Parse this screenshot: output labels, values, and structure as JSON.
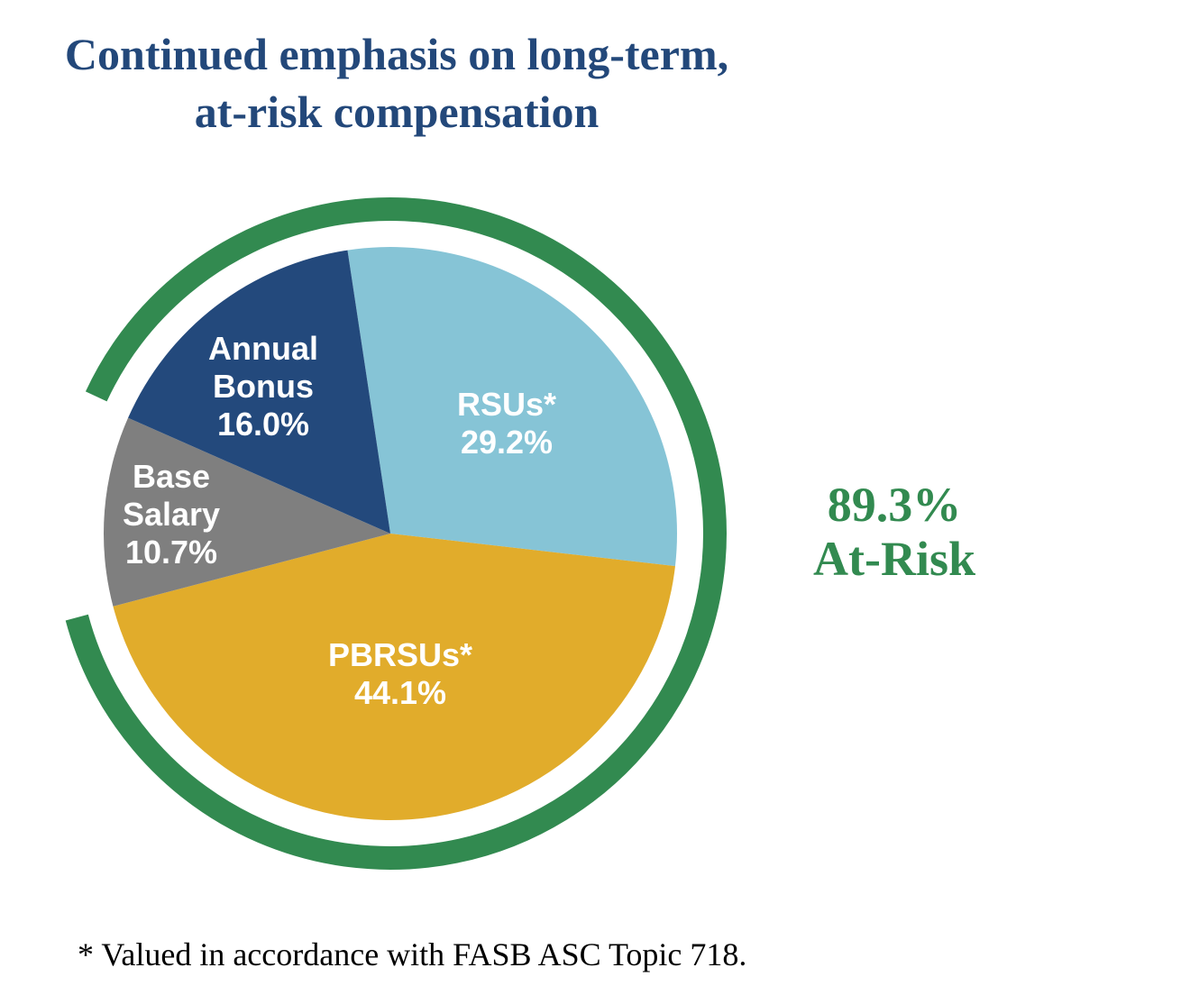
{
  "title_lines": [
    "Continued emphasis on long-term,",
    "at-risk compensation"
  ],
  "chart_data": {
    "type": "pie",
    "title": "Continued emphasis on long-term, at-risk compensation",
    "slices": [
      {
        "label_lines": [
          "RSUs*"
        ],
        "value": 29.2,
        "value_label": "29.2%",
        "color": "#86c4d6"
      },
      {
        "label_lines": [
          "PBRSUs*"
        ],
        "value": 44.1,
        "value_label": "44.1%",
        "color": "#e1ac2b"
      },
      {
        "label_lines": [
          "Base",
          "Salary"
        ],
        "value": 10.7,
        "value_label": "10.7%",
        "color": "#7f7f7f"
      },
      {
        "label_lines": [
          "Annual",
          "Bonus"
        ],
        "value": 16.0,
        "value_label": "16.0%",
        "color": "#23497c"
      }
    ],
    "at_risk": {
      "value": 89.3,
      "value_label": "89.3%",
      "label": "At-Risk",
      "color": "#328a50"
    }
  },
  "footnote": "* Valued in accordance with FASB ASC Topic 718."
}
